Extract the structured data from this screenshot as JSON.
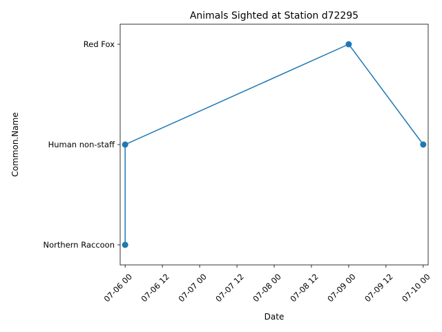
{
  "chart_data": {
    "type": "line",
    "title": "Animals Sighted at Station d72295",
    "xlabel": "Date",
    "ylabel": "Common.Name",
    "x_ticks": [
      "07-06 00",
      "07-06 12",
      "07-07 00",
      "07-07 12",
      "07-08 00",
      "07-08 12",
      "07-09 00",
      "07-09 12",
      "07-10 00"
    ],
    "y_categories": [
      "Northern Raccoon",
      "Human non-staff",
      "Red Fox"
    ],
    "xlim_hours": [
      -1.6,
      97.6
    ],
    "series": [
      {
        "color": "#1f77b4",
        "points": [
          {
            "date": "07-06 00",
            "hour": 0,
            "value": "Northern Raccoon"
          },
          {
            "date": "07-06 00",
            "hour": 0,
            "value": "Human non-staff"
          },
          {
            "date": "07-09 00",
            "hour": 72,
            "value": "Red Fox"
          },
          {
            "date": "07-10 00",
            "hour": 96,
            "value": "Human non-staff"
          }
        ]
      }
    ],
    "grid": false,
    "legend": "none"
  }
}
